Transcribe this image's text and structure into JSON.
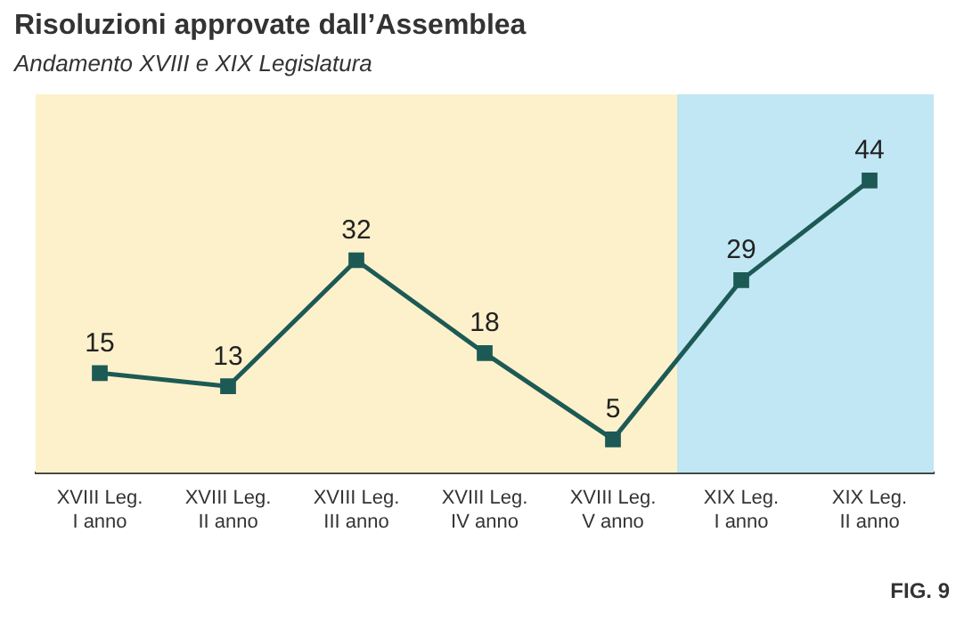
{
  "chart_data": {
    "type": "line",
    "title": "Risoluzioni approvate dall’Assemblea",
    "subtitle": "Andamento XVIII e XIX Legislatura",
    "categories": [
      "XVIII Leg.\nI anno",
      "XVIII Leg.\nII anno",
      "XVIII Leg.\nIII anno",
      "XVIII Leg.\nIV anno",
      "XVIII Leg.\nV anno",
      "XIX Leg.\nI anno",
      "XIX Leg.\nII anno"
    ],
    "series": [
      {
        "color": "#1d5a55",
        "values": [
          15,
          13,
          32,
          18,
          5,
          29,
          44
        ]
      }
    ],
    "ylim": [
      0,
      57
    ],
    "tick_labels": "x",
    "legend": false,
    "marker": "square",
    "line_style": "solid",
    "data_labels": true,
    "bands": [
      {
        "axis": "x",
        "from": "XVIII Leg.\nI anno",
        "to": "XVIII Leg.\nV anno",
        "color": "#fdf1cb"
      },
      {
        "axis": "x",
        "from": "XIX Leg.\nI anno",
        "to": "XIX Leg.\nII anno",
        "color": "#c0e7f3"
      }
    ],
    "annotations": [
      "FIG. 9"
    ]
  }
}
